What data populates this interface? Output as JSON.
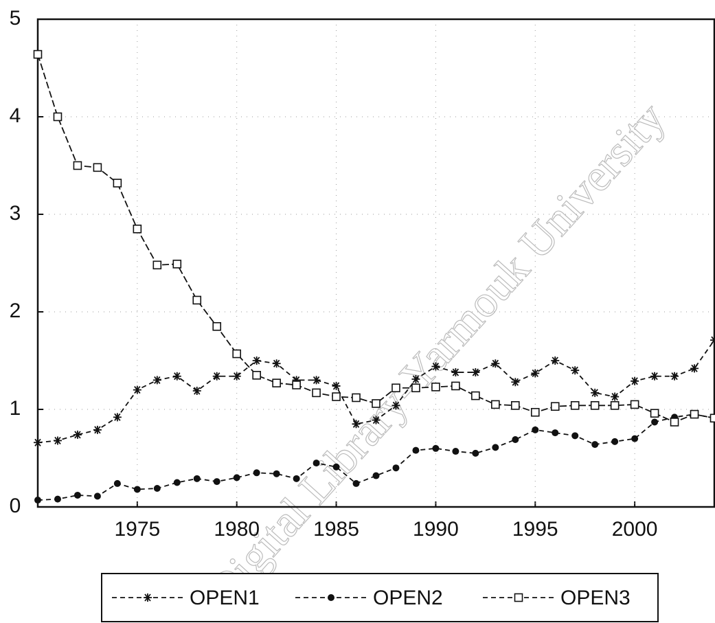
{
  "chart_data": {
    "type": "line",
    "x": [
      1970,
      1971,
      1972,
      1973,
      1974,
      1975,
      1976,
      1977,
      1978,
      1979,
      1980,
      1981,
      1982,
      1983,
      1984,
      1985,
      1986,
      1987,
      1988,
      1989,
      1990,
      1991,
      1992,
      1993,
      1994,
      1995,
      1996,
      1997,
      1998,
      1999,
      2000,
      2001,
      2002,
      2003,
      2004
    ],
    "series": [
      {
        "name": "OPEN1",
        "color": "#111111",
        "marker": "star",
        "values": [
          0.66,
          0.68,
          0.74,
          0.79,
          0.92,
          1.2,
          1.3,
          1.34,
          1.19,
          1.34,
          1.34,
          1.5,
          1.47,
          1.3,
          1.3,
          1.24,
          0.85,
          0.89,
          1.04,
          1.31,
          1.44,
          1.38,
          1.38,
          1.47,
          1.28,
          1.37,
          1.5,
          1.4,
          1.17,
          1.13,
          1.29,
          1.34,
          1.34,
          1.42,
          1.71
        ]
      },
      {
        "name": "OPEN2",
        "color": "#111111",
        "marker": "dot",
        "values": [
          0.07,
          0.08,
          0.12,
          0.11,
          0.24,
          0.18,
          0.19,
          0.25,
          0.29,
          0.26,
          0.3,
          0.35,
          0.34,
          0.29,
          0.45,
          0.41,
          0.24,
          0.32,
          0.4,
          0.58,
          0.6,
          0.57,
          0.55,
          0.61,
          0.69,
          0.79,
          0.76,
          0.73,
          0.64,
          0.67,
          0.7,
          0.87,
          0.92,
          0.95,
          0.91
        ]
      },
      {
        "name": "OPEN3",
        "color": "#111111",
        "marker": "square",
        "values": [
          4.64,
          4.0,
          3.5,
          3.48,
          3.32,
          2.85,
          2.48,
          2.49,
          2.12,
          1.85,
          1.57,
          1.35,
          1.27,
          1.25,
          1.17,
          1.13,
          1.12,
          1.06,
          1.22,
          1.22,
          1.23,
          1.24,
          1.14,
          1.05,
          1.04,
          0.97,
          1.03,
          1.04,
          1.04,
          1.04,
          1.05,
          0.96,
          0.87,
          0.95,
          0.91
        ]
      }
    ],
    "xlim": [
      1970,
      2004
    ],
    "xticks": [
      1975,
      1980,
      1985,
      1990,
      1995,
      2000
    ],
    "ylim": [
      0,
      5
    ],
    "yticks": [
      0,
      1,
      2,
      3,
      4,
      5
    ],
    "grid": true,
    "legend": "bottom",
    "watermark": "Digital Library-Yarmouk University"
  }
}
